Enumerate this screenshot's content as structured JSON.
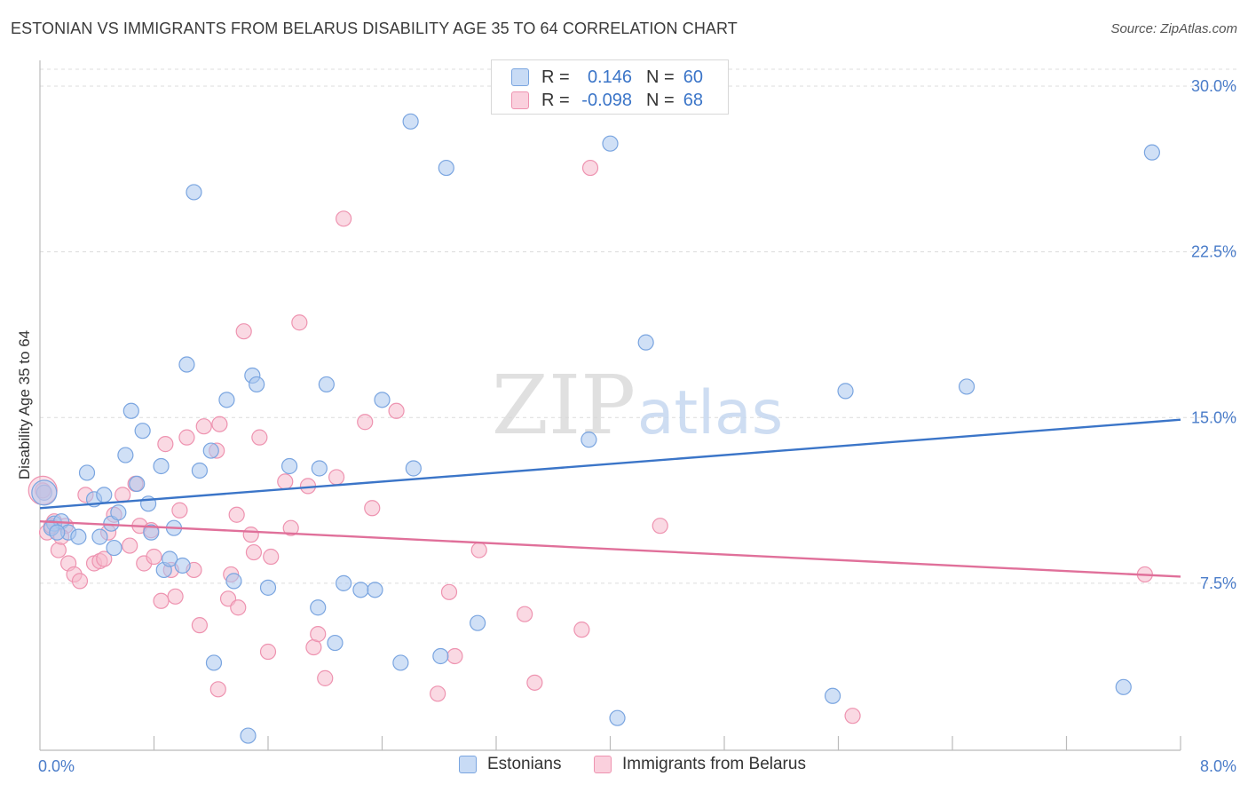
{
  "header": {
    "title": "ESTONIAN VS IMMIGRANTS FROM BELARUS DISABILITY AGE 35 TO 64 CORRELATION CHART",
    "source": "Source: ZipAtlas.com"
  },
  "watermark": {
    "part1": "ZIP",
    "part2": "atlas"
  },
  "legend_top": {
    "rows": [
      {
        "r_label": "R =",
        "r_value": "0.146",
        "n_label": "N =",
        "n_value": "60"
      },
      {
        "r_label": "R =",
        "r_value": "-0.098",
        "n_label": "N =",
        "n_value": "68"
      }
    ]
  },
  "legend_bottom": {
    "items": [
      {
        "label": "Estonians"
      },
      {
        "label": "Immigrants from Belarus"
      }
    ]
  },
  "colors": {
    "blue_fill": "#a9c6ee",
    "blue_stroke": "#7aa5e0",
    "blue_line": "#3b75c8",
    "pink_fill": "#f6b9cc",
    "pink_stroke": "#ee93b0",
    "pink_line": "#e0709a",
    "grid": "#dcdcdc",
    "tick_text": "#4a7cc9"
  },
  "chart_data": {
    "type": "scatter",
    "ylabel": "Disability Age 35 to 64",
    "xlabel": "",
    "xlim": [
      0,
      8
    ],
    "ylim": [
      0,
      31
    ],
    "x_tick_labels": [
      {
        "value": 0,
        "label": "0.0%"
      },
      {
        "value": 8,
        "label": "8.0%"
      }
    ],
    "y_tick_labels": [
      {
        "value": 7.5,
        "label": "7.5%"
      },
      {
        "value": 15,
        "label": "15.0%"
      },
      {
        "value": 22.5,
        "label": "22.5%"
      },
      {
        "value": 30,
        "label": "30.0%"
      }
    ],
    "grid": true,
    "series": [
      {
        "name": "Estonians",
        "trend": {
          "x": [
            0,
            8
          ],
          "y": [
            10.9,
            14.9
          ]
        },
        "points": [
          [
            0.03,
            11.6
          ],
          [
            0.1,
            10.2
          ],
          [
            0.15,
            10.3
          ],
          [
            0.2,
            9.8
          ],
          [
            0.27,
            9.6
          ],
          [
            0.33,
            12.5
          ],
          [
            0.38,
            11.3
          ],
          [
            0.42,
            9.6
          ],
          [
            0.45,
            11.5
          ],
          [
            0.5,
            10.2
          ],
          [
            0.52,
            9.1
          ],
          [
            0.55,
            10.7
          ],
          [
            0.6,
            13.3
          ],
          [
            0.64,
            15.3
          ],
          [
            0.68,
            12.0
          ],
          [
            0.72,
            14.4
          ],
          [
            0.76,
            11.1
          ],
          [
            0.78,
            9.8
          ],
          [
            0.85,
            12.8
          ],
          [
            0.87,
            8.1
          ],
          [
            0.91,
            8.6
          ],
          [
            0.94,
            10.0
          ],
          [
            1.0,
            8.3
          ],
          [
            1.03,
            17.4
          ],
          [
            1.08,
            25.2
          ],
          [
            1.12,
            12.6
          ],
          [
            1.2,
            13.5
          ],
          [
            1.22,
            3.9
          ],
          [
            1.31,
            15.8
          ],
          [
            1.36,
            7.6
          ],
          [
            1.46,
            0.6
          ],
          [
            1.49,
            16.9
          ],
          [
            1.52,
            16.5
          ],
          [
            1.6,
            7.3
          ],
          [
            1.75,
            12.8
          ],
          [
            1.95,
            6.4
          ],
          [
            1.96,
            12.7
          ],
          [
            2.01,
            16.5
          ],
          [
            2.07,
            4.8
          ],
          [
            2.13,
            7.5
          ],
          [
            2.25,
            7.2
          ],
          [
            2.35,
            7.2
          ],
          [
            2.4,
            15.8
          ],
          [
            2.53,
            3.9
          ],
          [
            2.62,
            12.7
          ],
          [
            2.6,
            28.4
          ],
          [
            2.85,
            26.3
          ],
          [
            2.81,
            4.2
          ],
          [
            3.07,
            5.7
          ],
          [
            3.85,
            14.0
          ],
          [
            4.0,
            27.4
          ],
          [
            4.05,
            1.4
          ],
          [
            4.25,
            18.4
          ],
          [
            5.56,
            2.4
          ],
          [
            5.65,
            16.2
          ],
          [
            6.5,
            16.4
          ],
          [
            7.6,
            2.8
          ],
          [
            7.8,
            27.0
          ],
          [
            0.08,
            10.0
          ],
          [
            0.12,
            9.8
          ]
        ]
      },
      {
        "name": "Immigrants from Belarus",
        "trend": {
          "x": [
            0,
            8
          ],
          "y": [
            10.3,
            7.8
          ]
        },
        "points": [
          [
            0.02,
            11.7
          ],
          [
            0.05,
            9.8
          ],
          [
            0.1,
            10.3
          ],
          [
            0.13,
            9.0
          ],
          [
            0.18,
            10.1
          ],
          [
            0.2,
            8.4
          ],
          [
            0.24,
            7.9
          ],
          [
            0.28,
            7.6
          ],
          [
            0.32,
            11.5
          ],
          [
            0.38,
            8.4
          ],
          [
            0.42,
            8.5
          ],
          [
            0.45,
            8.6
          ],
          [
            0.48,
            9.8
          ],
          [
            0.52,
            10.6
          ],
          [
            0.58,
            11.5
          ],
          [
            0.63,
            9.2
          ],
          [
            0.67,
            12.0
          ],
          [
            0.7,
            10.1
          ],
          [
            0.73,
            8.4
          ],
          [
            0.78,
            9.9
          ],
          [
            0.8,
            8.7
          ],
          [
            0.85,
            6.7
          ],
          [
            0.88,
            13.8
          ],
          [
            0.92,
            8.1
          ],
          [
            0.95,
            6.9
          ],
          [
            0.98,
            10.8
          ],
          [
            1.03,
            14.1
          ],
          [
            1.08,
            8.1
          ],
          [
            1.12,
            5.6
          ],
          [
            1.15,
            14.6
          ],
          [
            1.24,
            13.5
          ],
          [
            1.25,
            2.7
          ],
          [
            1.26,
            14.7
          ],
          [
            1.32,
            6.8
          ],
          [
            1.34,
            7.9
          ],
          [
            1.38,
            10.6
          ],
          [
            1.39,
            6.4
          ],
          [
            1.43,
            18.9
          ],
          [
            1.48,
            9.7
          ],
          [
            1.5,
            8.9
          ],
          [
            1.54,
            14.1
          ],
          [
            1.6,
            4.4
          ],
          [
            1.62,
            8.7
          ],
          [
            1.72,
            12.1
          ],
          [
            1.76,
            10.0
          ],
          [
            1.82,
            19.3
          ],
          [
            1.88,
            11.9
          ],
          [
            1.92,
            4.6
          ],
          [
            1.95,
            5.2
          ],
          [
            2.0,
            3.2
          ],
          [
            2.08,
            12.3
          ],
          [
            2.13,
            24.0
          ],
          [
            2.28,
            14.8
          ],
          [
            2.33,
            10.9
          ],
          [
            2.5,
            15.3
          ],
          [
            2.79,
            2.5
          ],
          [
            2.87,
            7.1
          ],
          [
            2.91,
            4.2
          ],
          [
            3.08,
            9.0
          ],
          [
            3.4,
            6.1
          ],
          [
            3.47,
            3.0
          ],
          [
            3.8,
            5.4
          ],
          [
            3.86,
            26.3
          ],
          [
            4.35,
            10.1
          ],
          [
            5.7,
            1.5
          ],
          [
            7.75,
            7.9
          ],
          [
            0.08,
            10.1
          ],
          [
            0.15,
            9.6
          ]
        ]
      }
    ]
  }
}
